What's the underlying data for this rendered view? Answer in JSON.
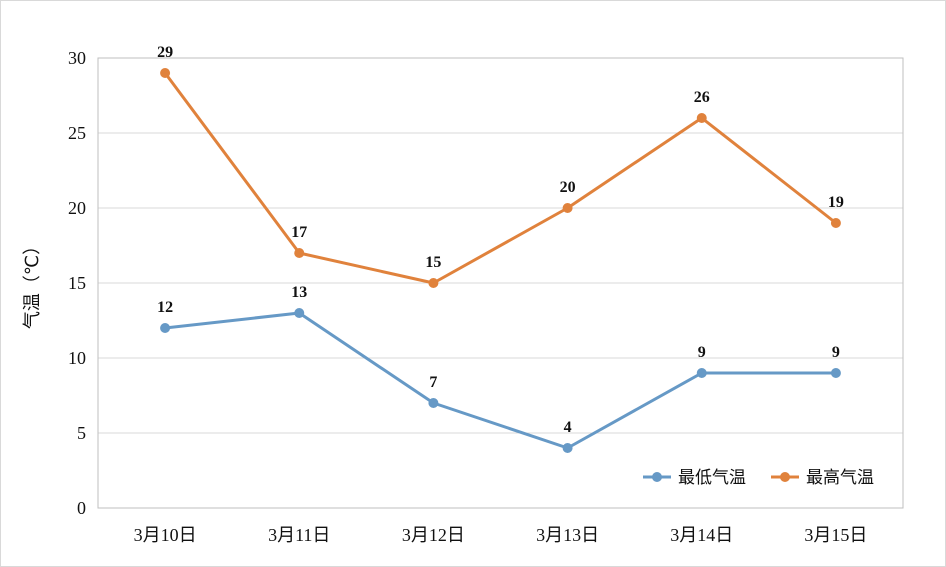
{
  "chart_data": {
    "type": "line",
    "title": "",
    "xlabel": "",
    "ylabel": "气温（℃）",
    "categories": [
      "3月10日",
      "3月11日",
      "3月12日",
      "3月13日",
      "3月14日",
      "3月15日"
    ],
    "ylim": [
      0,
      30
    ],
    "yticks": [
      0,
      5,
      10,
      15,
      20,
      25,
      30
    ],
    "grid": true,
    "legend_position": "bottom-right",
    "series": [
      {
        "name": "最低气温",
        "color": "#6699c6",
        "values": [
          12,
          13,
          7,
          4,
          9,
          9
        ]
      },
      {
        "name": "最高气温",
        "color": "#e0823c",
        "values": [
          29,
          17,
          15,
          20,
          26,
          19
        ]
      }
    ]
  }
}
